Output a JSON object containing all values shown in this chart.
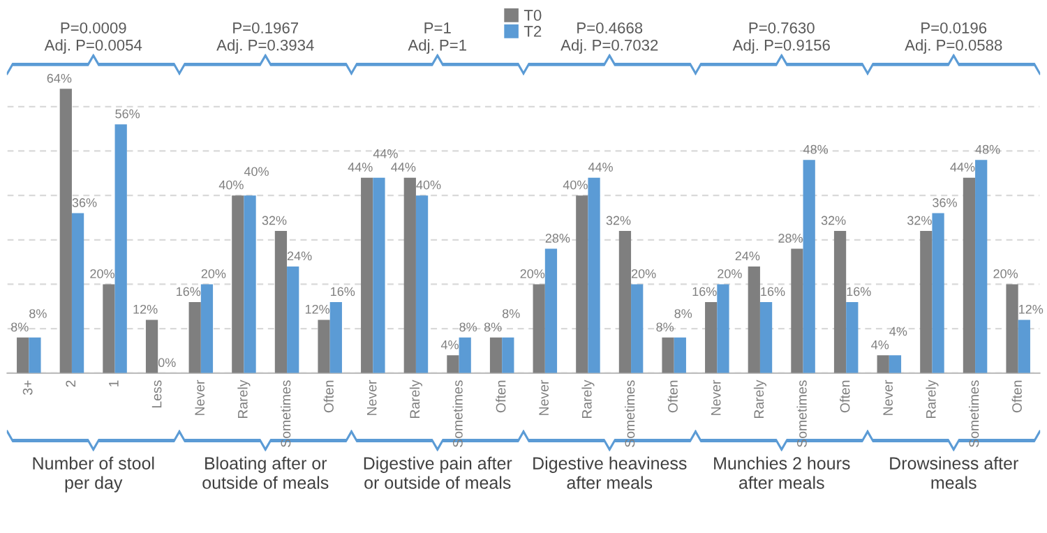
{
  "chart_data": {
    "type": "bar",
    "categories": [
      "3+",
      "2",
      "1",
      "Less",
      "Never",
      "Rarely",
      "Sometimes",
      "Often",
      "Never",
      "Rarely",
      "Sometimes",
      "Often",
      "Never",
      "Rarely",
      "Sometimes",
      "Often",
      "Never",
      "Rarely",
      "Sometimes",
      "Often",
      "Never",
      "Rarely",
      "Sometimes",
      "Often"
    ],
    "series": [
      {
        "name": "T0",
        "color": "#7f7f7f",
        "values": [
          8,
          64,
          20,
          12,
          16,
          40,
          32,
          12,
          44,
          44,
          4,
          8,
          20,
          40,
          32,
          8,
          16,
          24,
          28,
          32,
          4,
          32,
          44,
          20
        ],
        "value_labels": [
          "8%",
          "64%",
          "20%",
          "12%",
          "16%",
          "40%",
          "32%",
          "12%",
          "44%",
          "44%",
          "4%",
          "8%",
          "20%",
          "40%",
          "32%",
          "8%",
          "16%",
          "24%",
          "28%",
          "32%",
          "4%",
          "32%",
          "44%",
          "20%"
        ]
      },
      {
        "name": "T2",
        "color": "#5b9bd5",
        "values": [
          8,
          36,
          56,
          0,
          20,
          40,
          24,
          16,
          44,
          40,
          8,
          8,
          28,
          44,
          20,
          8,
          20,
          16,
          48,
          16,
          4,
          36,
          48,
          12
        ],
        "value_labels": [
          "8%",
          "36%",
          "56%",
          "0%",
          "20%",
          "40%",
          "24%",
          "16%",
          "44%",
          "40%",
          "8%",
          "8%",
          "28%",
          "44%",
          "20%",
          "8%",
          "20%",
          "16%",
          "48%",
          "16%",
          "4%",
          "36%",
          "48%",
          "12%"
        ]
      }
    ],
    "grid": "y",
    "legend": "top",
    "tick_labels": "x",
    "annotations": [
      "Number of stool\nper day",
      "Bloating after or\noutside of meals",
      "Digestive pain after\nor outside of meals",
      "Digestive heaviness\nafter meals",
      "Munchies 2 hours\nafter meals",
      "Drowsiness after\nmeals",
      "P=0.0009\nAdj. P=0.0054",
      "P=0.1967\nAdj. P=0.3934",
      "P=1\nAdj. P=1",
      "P=0.4668\nAdj. P=0.7032",
      "P=0.7630\nAdj. P=0.9156",
      "P=0.0196\nAdj. P=0.0588"
    ]
  }
}
